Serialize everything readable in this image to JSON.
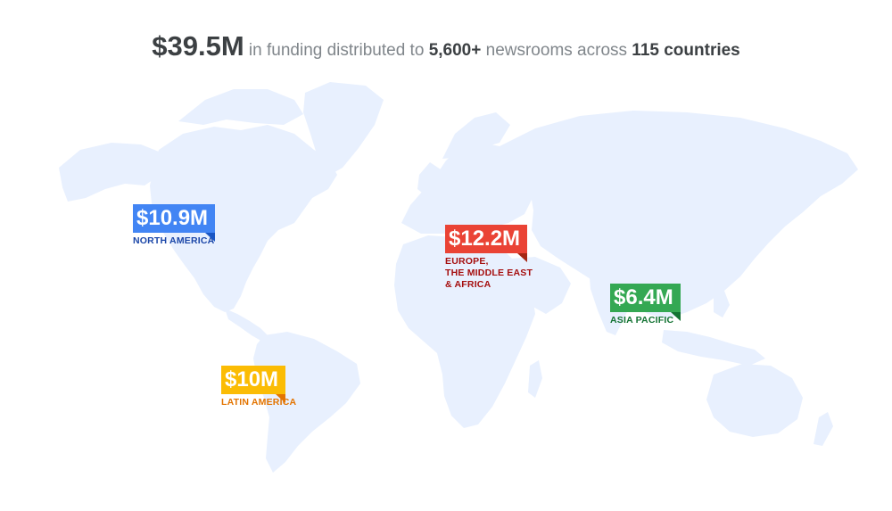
{
  "headline": {
    "total": "$39.5M",
    "text1": " in funding distributed to ",
    "newsrooms": "5,600+",
    "text2": " newsrooms across ",
    "countries": "115 countries"
  },
  "colors": {
    "land": "#e8f0fe",
    "north_america": "#4285f4",
    "emea": "#ea4335",
    "asia_pacific": "#34a853",
    "latin_america": "#fbbc04"
  },
  "regions": {
    "north_america": {
      "amount": "$10.9M",
      "name": "NORTH AMERICA"
    },
    "emea": {
      "amount": "$12.2M",
      "name_lines": [
        "EUROPE,",
        "THE MIDDLE EAST",
        "& AFRICA"
      ]
    },
    "asia_pacific": {
      "amount": "$6.4M",
      "name": "ASIA PACIFIC"
    },
    "latin_america": {
      "amount": "$10M",
      "name": "LATIN AMERICA"
    }
  }
}
